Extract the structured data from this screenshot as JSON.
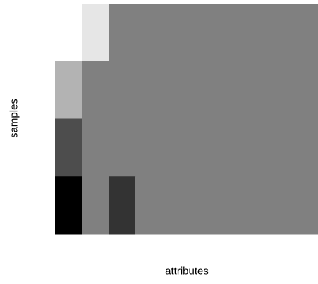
{
  "chart_data": {
    "type": "heatmap",
    "title": "",
    "xlabel": "attributes",
    "ylabel": "samples",
    "n_cols": 10,
    "n_rows": 4,
    "colormap": "gray",
    "vmin": 0,
    "vmax": 1,
    "background_value": 0.5,
    "grid": false,
    "colorbar": false,
    "cells": [
      {
        "row": 0,
        "col": 0,
        "value": 1.0
      },
      {
        "row": 0,
        "col": 1,
        "value": 0.9
      },
      {
        "row": 1,
        "col": 0,
        "value": 0.7
      },
      {
        "row": 2,
        "col": 0,
        "value": 0.3
      },
      {
        "row": 3,
        "col": 0,
        "value": 0.0
      },
      {
        "row": 3,
        "col": 2,
        "value": 0.2
      }
    ]
  }
}
